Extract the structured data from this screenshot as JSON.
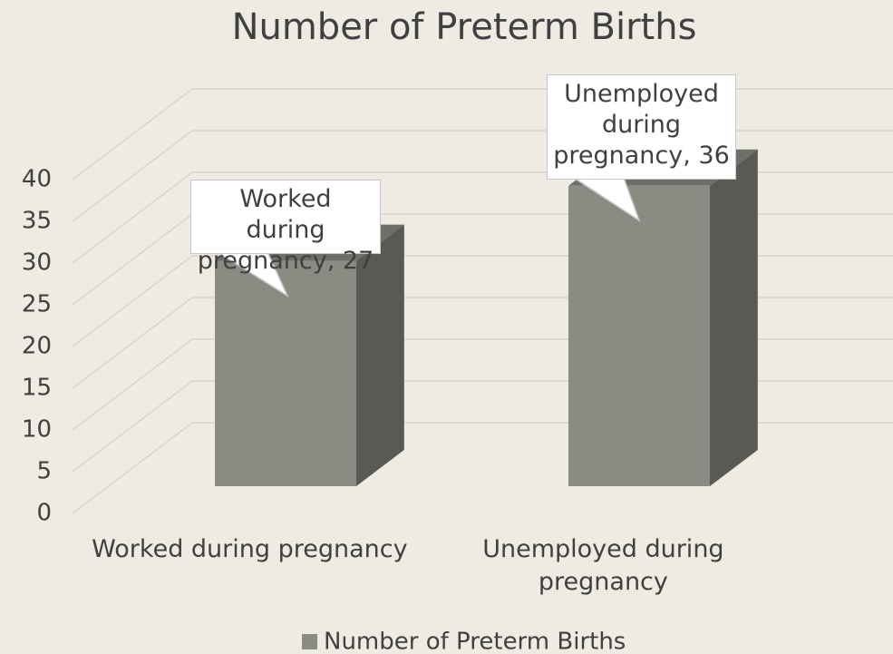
{
  "chart_data": {
    "type": "bar3d",
    "title": "Number of Preterm Births",
    "categories": [
      "Worked during pregnancy",
      "Unemployed during pregnancy"
    ],
    "series": [
      {
        "name": "Number of Preterm Births",
        "color": "#8a8b83",
        "values": [
          27,
          36
        ],
        "value_labels": [
          "Worked during pregnancy, 27",
          "Unemployed during pregnancy, 36"
        ]
      }
    ],
    "ylim": [
      0,
      40
    ],
    "yticks": [
      0,
      5,
      10,
      15,
      20,
      25,
      30,
      35,
      40
    ],
    "grid": true,
    "legend": "bottom"
  }
}
